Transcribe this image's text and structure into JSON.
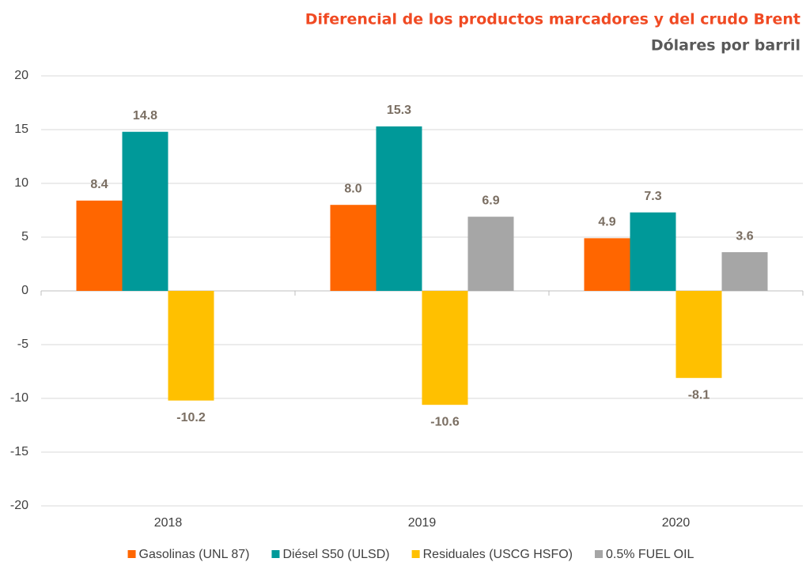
{
  "chart_data": {
    "type": "bar",
    "title": "Diferencial de los productos marcadores y del crudo Brent",
    "subtitle": "Dólares por barril",
    "categories": [
      "2018",
      "2019",
      "2020"
    ],
    "series": [
      {
        "name": "Gasolinas (UNL 87)",
        "color": "#ff6600",
        "values": [
          8.4,
          8,
          4.9
        ],
        "value_labels": [
          "8.4",
          "8.0",
          "4.9"
        ]
      },
      {
        "name": "Diésel S50 (ULSD)",
        "color": "#009999",
        "values": [
          14.8,
          15.3,
          7.3
        ],
        "value_labels": [
          "14.8",
          "15.3",
          "7.3"
        ]
      },
      {
        "name": "Residuales (USCG HSFO)",
        "color": "#ffc000",
        "values": [
          -10.2,
          -10.6,
          -8.1
        ],
        "value_labels": [
          "-10.2",
          "-10.6",
          "-8.1"
        ]
      },
      {
        "name": "0.5% FUEL OIL",
        "color": "#a6a6a6",
        "values": [
          null,
          6.9,
          3.6
        ],
        "value_labels": [
          null,
          "6.9",
          "3.6"
        ]
      }
    ],
    "ylim": [
      -20,
      20
    ],
    "yticks": [
      -20,
      -15,
      -10,
      -5,
      0,
      5,
      10,
      15,
      20
    ],
    "grid": true,
    "legend": "bottom"
  }
}
